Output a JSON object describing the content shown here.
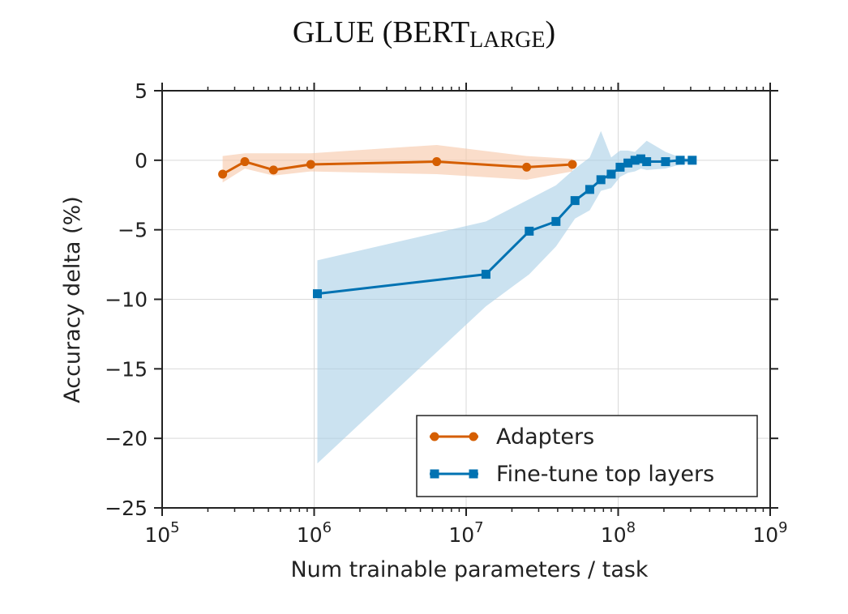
{
  "chart_data": {
    "type": "line",
    "title": "GLUE (BERT",
    "title_subscript": "LARGE",
    "title_close": ")",
    "xlabel": "Num trainable parameters / task",
    "ylabel": "Accuracy delta (%)",
    "x_scale": "log",
    "xlim": [
      100000,
      1000000000
    ],
    "ylim": [
      -25,
      5
    ],
    "x_ticks": [
      {
        "base": "10",
        "exp": "5",
        "value": 100000
      },
      {
        "base": "10",
        "exp": "6",
        "value": 1000000
      },
      {
        "base": "10",
        "exp": "7",
        "value": 10000000
      },
      {
        "base": "10",
        "exp": "8",
        "value": 100000000
      },
      {
        "base": "10",
        "exp": "9",
        "value": 1000000000
      }
    ],
    "y_ticks": [
      {
        "label": "5",
        "value": 5
      },
      {
        "label": "0",
        "value": 0
      },
      {
        "label": "−5",
        "value": -5
      },
      {
        "label": "−10",
        "value": -10
      },
      {
        "label": "−15",
        "value": -15
      },
      {
        "label": "−20",
        "value": -20
      },
      {
        "label": "−25",
        "value": -25
      }
    ],
    "grid": true,
    "legend_position": "bottom-right",
    "series": [
      {
        "name": "Adapters",
        "color": "#d55e00",
        "marker": "circle",
        "x": [
          250000,
          350000,
          540000,
          950000,
          6400000,
          25000000,
          50000000
        ],
        "y": [
          -1.0,
          -0.1,
          -0.7,
          -0.3,
          -0.1,
          -0.5,
          -0.3
        ],
        "band_upper": [
          0.3,
          0.5,
          0.5,
          0.5,
          1.1,
          0.3,
          0.1
        ],
        "band_lower": [
          -1.6,
          -0.6,
          -1.1,
          -0.8,
          -1.0,
          -1.4,
          -0.8
        ]
      },
      {
        "name": "Fine-tune top layers",
        "color": "#0072b2",
        "marker": "square",
        "x": [
          1050000,
          13500000,
          26000000,
          39000000,
          52000000,
          65000000,
          77000000,
          90000000,
          103000000,
          116000000,
          129000000,
          141000000,
          154000000,
          205000000,
          256000000,
          307000000
        ],
        "y": [
          -9.6,
          -8.2,
          -5.1,
          -4.4,
          -2.9,
          -2.1,
          -1.4,
          -1.0,
          -0.5,
          -0.2,
          0.0,
          0.1,
          -0.1,
          -0.1,
          0.0,
          0.0
        ],
        "band_upper": [
          -7.2,
          -4.4,
          -2.8,
          -1.8,
          -0.6,
          0.2,
          2.1,
          0.2,
          0.7,
          0.7,
          0.6,
          1.0,
          1.4,
          0.6,
          0.2,
          0.1
        ],
        "band_lower": [
          -21.8,
          -10.5,
          -8.2,
          -6.2,
          -4.2,
          -3.6,
          -2.2,
          -2.0,
          -1.2,
          -0.9,
          -0.8,
          -0.6,
          -0.7,
          -0.6,
          -0.3,
          -0.2
        ]
      }
    ]
  }
}
